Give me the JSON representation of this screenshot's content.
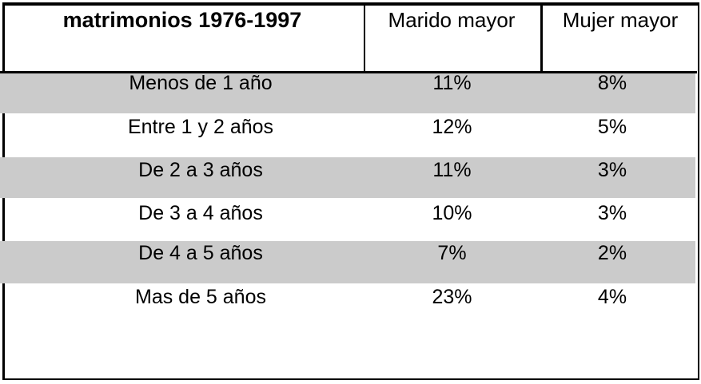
{
  "table": {
    "title": "matrimonios 1976-1997",
    "columns": [
      "Marido mayor",
      "Mujer mayor"
    ],
    "rows": [
      {
        "label": "Menos de 1 año",
        "marido": "11%",
        "mujer": "8%",
        "shaded": true
      },
      {
        "label": "Entre 1 y 2 años",
        "marido": "12%",
        "mujer": "5%",
        "shaded": false
      },
      {
        "label": "De 2 a 3 años",
        "marido": "11%",
        "mujer": "3%",
        "shaded": true
      },
      {
        "label": "De 3 a 4 años",
        "marido": "10%",
        "mujer": "3%",
        "shaded": false
      },
      {
        "label": "De 4 a 5 años",
        "marido": "7%",
        "mujer": "2%",
        "shaded": true
      },
      {
        "label": "Mas de 5 años",
        "marido": "23%",
        "mujer": "4%",
        "shaded": false
      }
    ]
  },
  "chart_data": {
    "type": "table",
    "title": "matrimonios 1976-1997",
    "categories": [
      "Menos de 1 año",
      "Entre 1 y 2 años",
      "De 2 a 3 años",
      "De 3 a 4 años",
      "De 4 a 5 años",
      "Mas de 5 años"
    ],
    "series": [
      {
        "name": "Marido mayor",
        "values": [
          11,
          12,
          11,
          10,
          7,
          23
        ]
      },
      {
        "name": "Mujer mayor",
        "values": [
          8,
          5,
          3,
          3,
          2,
          4
        ]
      }
    ],
    "unit": "%",
    "layout": {
      "grid": "outer-border-with-header-separators",
      "row_shading": "alternating-odd-rows"
    }
  },
  "colors": {
    "row_shading": "#CBCBCB",
    "border": "#000000",
    "text": "#000000",
    "background": "#FFFFFF"
  }
}
